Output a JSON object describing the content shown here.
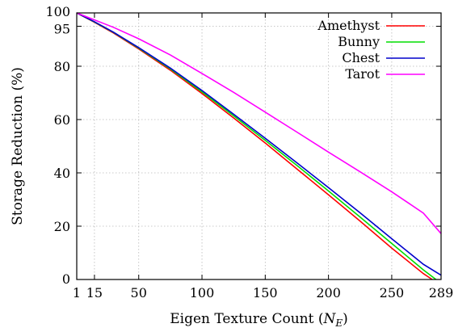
{
  "chart_data": {
    "type": "line",
    "title": "",
    "xlabel": "Eigen Texture Count (",
    "xlabel_symbol": "N",
    "xlabel_subscript": "E",
    "xlabel_close": ")",
    "ylabel": "Storage Reduction (%)",
    "xlim": [
      1,
      289
    ],
    "ylim": [
      0,
      100
    ],
    "x_ticks": [
      1,
      15,
      50,
      100,
      150,
      200,
      250,
      289
    ],
    "y_ticks": [
      0,
      20,
      40,
      60,
      80,
      95,
      100
    ],
    "grid": true,
    "legend_position": "top-right",
    "series": [
      {
        "name": "Amethyst",
        "color": "#ff0000",
        "x": [
          1,
          15,
          30,
          50,
          75,
          100,
          125,
          150,
          175,
          200,
          225,
          250,
          275,
          282
        ],
        "y": [
          100,
          96.5,
          92.5,
          86.5,
          78.5,
          69.8,
          60.6,
          51.2,
          41.5,
          31.8,
          21.9,
          11.8,
          2.2,
          0
        ]
      },
      {
        "name": "Bunny",
        "color": "#00dd00",
        "x": [
          1,
          15,
          30,
          50,
          75,
          100,
          125,
          150,
          175,
          200,
          225,
          250,
          275,
          285
        ],
        "y": [
          100,
          96.6,
          92.7,
          86.8,
          79,
          70.4,
          61.4,
          52.2,
          42.8,
          33.2,
          23.4,
          13.5,
          3.6,
          0
        ]
      },
      {
        "name": "Chest",
        "color": "#0000cc",
        "x": [
          1,
          15,
          30,
          50,
          75,
          100,
          125,
          150,
          175,
          200,
          225,
          250,
          275,
          289
        ],
        "y": [
          100,
          96.7,
          92.8,
          87,
          79.3,
          70.9,
          62,
          53,
          43.8,
          34.5,
          25,
          15.3,
          5.7,
          1.6
        ]
      },
      {
        "name": "Tarot",
        "color": "#ff00ff",
        "x": [
          1,
          15,
          30,
          50,
          75,
          100,
          125,
          150,
          175,
          200,
          225,
          250,
          275,
          289
        ],
        "y": [
          100,
          97.4,
          94.6,
          90.3,
          84.2,
          77.3,
          70.2,
          62.8,
          55.3,
          47.8,
          40.4,
          32.9,
          24.9,
          17.2
        ]
      }
    ]
  }
}
